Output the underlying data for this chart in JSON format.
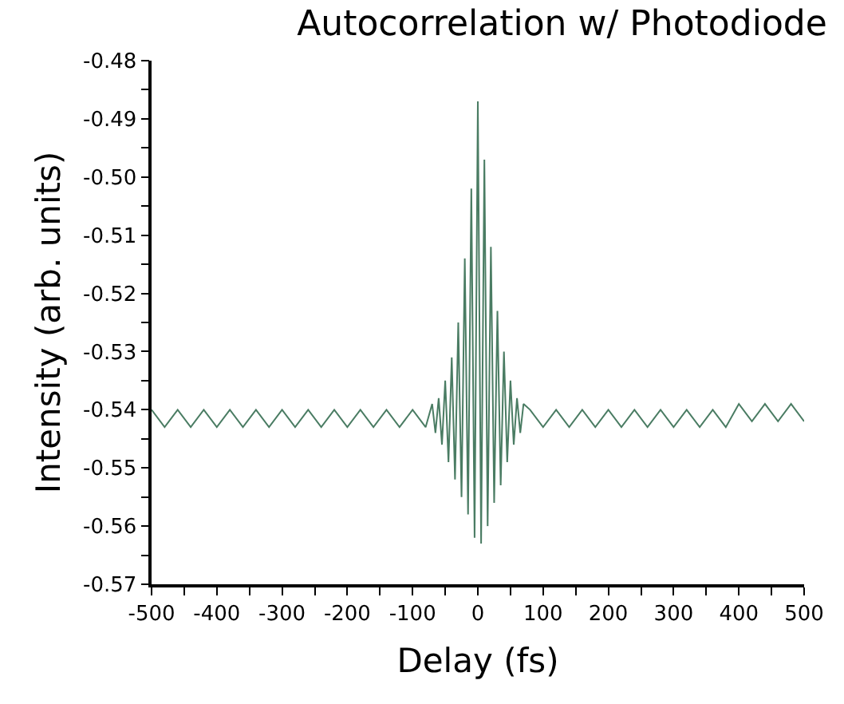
{
  "chart_data": {
    "type": "line",
    "title": "Autocorrelation w/ Photodiode",
    "xlabel": "Delay (fs)",
    "ylabel": "Intensity (arb. units)",
    "x": [
      -500,
      -480,
      -460,
      -440,
      -420,
      -400,
      -380,
      -360,
      -340,
      -320,
      -300,
      -280,
      -260,
      -240,
      -220,
      -200,
      -180,
      -160,
      -140,
      -120,
      -100,
      -80,
      -70,
      -65,
      -60,
      -55,
      -50,
      -45,
      -40,
      -35,
      -30,
      -25,
      -20,
      -15,
      -10,
      -5,
      0,
      5,
      10,
      15,
      20,
      25,
      30,
      35,
      40,
      45,
      50,
      55,
      60,
      65,
      70,
      80,
      100,
      120,
      140,
      160,
      180,
      200,
      220,
      240,
      260,
      280,
      300,
      320,
      340,
      360,
      380,
      400,
      420,
      440,
      460,
      480,
      500
    ],
    "series": [
      {
        "color": "#4a7c63",
        "values": [
          -0.54,
          -0.543,
          -0.54,
          -0.543,
          -0.54,
          -0.543,
          -0.54,
          -0.543,
          -0.54,
          -0.543,
          -0.54,
          -0.543,
          -0.54,
          -0.543,
          -0.54,
          -0.543,
          -0.54,
          -0.543,
          -0.54,
          -0.543,
          -0.54,
          -0.543,
          -0.539,
          -0.544,
          -0.538,
          -0.546,
          -0.535,
          -0.549,
          -0.531,
          -0.552,
          -0.525,
          -0.555,
          -0.514,
          -0.558,
          -0.502,
          -0.562,
          -0.487,
          -0.563,
          -0.497,
          -0.56,
          -0.512,
          -0.556,
          -0.523,
          -0.553,
          -0.53,
          -0.549,
          -0.535,
          -0.546,
          -0.538,
          -0.544,
          -0.539,
          -0.54,
          -0.543,
          -0.54,
          -0.543,
          -0.54,
          -0.543,
          -0.54,
          -0.543,
          -0.54,
          -0.543,
          -0.54,
          -0.543,
          -0.54,
          -0.543,
          -0.54,
          -0.543,
          -0.539,
          -0.542,
          -0.539,
          -0.542,
          -0.539,
          -0.542
        ]
      }
    ],
    "xlim": [
      -500,
      500
    ],
    "xticks": [
      -500,
      {
        "value": -450,
        "label": null
      },
      -400,
      {
        "value": -350,
        "label": null
      },
      -300,
      {
        "value": -250,
        "label": null
      },
      -200,
      {
        "value": -150,
        "label": null
      },
      -100,
      {
        "value": -50,
        "label": null
      },
      0,
      {
        "value": 50,
        "label": null
      },
      100,
      {
        "value": 150,
        "label": null
      },
      200,
      {
        "value": 250,
        "label": null
      },
      300,
      {
        "value": 350,
        "label": null
      },
      400,
      {
        "value": 450,
        "label": null
      },
      500
    ],
    "ylim": [
      -0.57,
      -0.48
    ],
    "yticks": [
      {
        "value": -0.57,
        "label": "-0.57"
      },
      {
        "value": -0.565,
        "label": null
      },
      {
        "value": -0.56,
        "label": "-0.56"
      },
      {
        "value": -0.555,
        "label": null
      },
      {
        "value": -0.55,
        "label": "-0.55"
      },
      {
        "value": -0.545,
        "label": null
      },
      {
        "value": -0.54,
        "label": "-0.54"
      },
      {
        "value": -0.535,
        "label": null
      },
      {
        "value": -0.53,
        "label": "-0.53"
      },
      {
        "value": -0.525,
        "label": null
      },
      {
        "value": -0.52,
        "label": "-0.52"
      },
      {
        "value": -0.515,
        "label": null
      },
      {
        "value": -0.51,
        "label": "-0.51"
      },
      {
        "value": -0.505,
        "label": null
      },
      {
        "value": -0.5,
        "label": "-0.50"
      },
      {
        "value": -0.495,
        "label": null
      },
      {
        "value": -0.49,
        "label": "-0.49"
      },
      {
        "value": -0.485,
        "label": null
      },
      {
        "value": -0.48,
        "label": "-0.48"
      }
    ],
    "marker": "none",
    "line_style": "solid"
  }
}
